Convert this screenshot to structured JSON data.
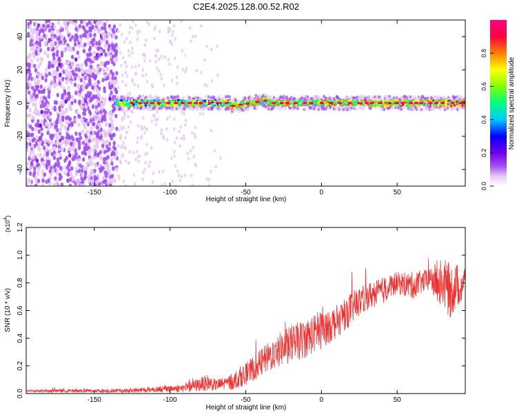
{
  "title": "C2E4.2025.128.00.52.R02",
  "chart_data": [
    {
      "type": "heatmap",
      "xlabel": "Height of straight line (km)",
      "ylabel": "Frequency (Hz)",
      "xlim": [
        -195,
        95
      ],
      "ylim": [
        -50,
        50
      ],
      "x_ticks": [
        -150,
        -100,
        -50,
        0,
        50
      ],
      "y_ticks": [
        -40,
        -20,
        0,
        20,
        40
      ],
      "colorbar": {
        "label": "Normalized spectral amplitude",
        "range": [
          0,
          1
        ],
        "ticks": [
          "0.0",
          "0.2",
          "0.4",
          "0.6",
          "0.8"
        ],
        "colormap": [
          "#ffffff",
          "#e6c8f5",
          "#a050f0",
          "#7000ee",
          "#0000ff",
          "#00c8ff",
          "#00ff80",
          "#80ff00",
          "#ffff00",
          "#ff8000",
          "#ff0040",
          "#ff0080"
        ]
      },
      "features": {
        "noise_region_x": [
          -195,
          -135
        ],
        "sparse_region_x": [
          -135,
          -60
        ],
        "ridge_start_x": -135,
        "ridge_frequency_hz": 0
      }
    },
    {
      "type": "line",
      "xlabel": "Height of straight line (km)",
      "ylabel": "SNR (10 * v/v)",
      "y_exponent_label": "(x10",
      "y_exponent_power": "4",
      "y_exponent_close": ")",
      "xlim": [
        -195,
        95
      ],
      "ylim": [
        0,
        1.2
      ],
      "x_ticks": [
        -150,
        -100,
        -50,
        0,
        50
      ],
      "y_ticks": [
        "0.0",
        "0.2",
        "0.4",
        "0.6",
        "0.8",
        "1.0",
        "1.2"
      ],
      "series": [
        {
          "color": "#ee3333",
          "envelope": {
            "x": [
              -195,
              -130,
              -110,
              -90,
              -75,
              -70,
              -60,
              -50,
              -40,
              -30,
              -20,
              -10,
              0,
              10,
              20,
              30,
              40,
              50,
              60,
              70,
              80,
              85,
              90,
              95
            ],
            "mid": [
              0.02,
              0.02,
              0.03,
              0.04,
              0.08,
              0.06,
              0.08,
              0.14,
              0.22,
              0.3,
              0.36,
              0.4,
              0.46,
              0.52,
              0.62,
              0.7,
              0.74,
              0.8,
              0.78,
              0.82,
              0.8,
              0.74,
              0.78,
              0.8
            ],
            "spread": [
              0.01,
              0.015,
              0.02,
              0.03,
              0.06,
              0.04,
              0.06,
              0.08,
              0.1,
              0.12,
              0.14,
              0.14,
              0.14,
              0.12,
              0.12,
              0.1,
              0.1,
              0.08,
              0.1,
              0.08,
              0.18,
              0.2,
              0.16,
              0.14
            ]
          }
        }
      ]
    }
  ]
}
